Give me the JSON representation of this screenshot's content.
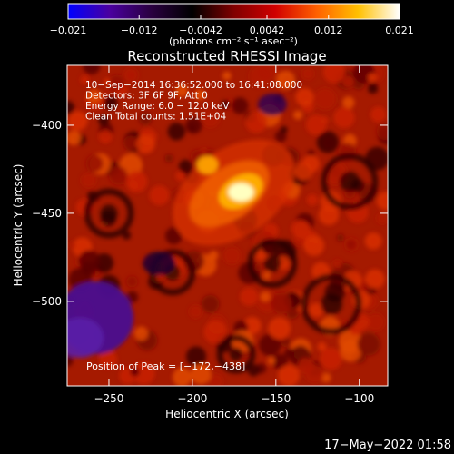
{
  "chart_data": {
    "type": "heatmap",
    "title": "Reconstructed RHESSI Image",
    "xlabel": "Heliocentric X (arcsec)",
    "ylabel": "Heliocentric Y (arcsec)",
    "xlim": [
      -275,
      -83
    ],
    "ylim": [
      -548,
      -366
    ],
    "x_ticks": [
      -250,
      -200,
      -150,
      -100
    ],
    "y_ticks": [
      -400,
      -450,
      -500
    ],
    "x_tick_labels": [
      "−250",
      "−200",
      "−150",
      "−100"
    ],
    "y_tick_labels": [
      "−400",
      "−450",
      "−500"
    ],
    "colorbar": {
      "range": [
        -0.021,
        0.021
      ],
      "ticks": [
        -0.021,
        -0.012,
        -0.0042,
        0.0042,
        0.012,
        0.021
      ],
      "tick_labels": [
        "−0.021",
        "−0.012",
        "−0.0042",
        "0.0042",
        "0.012",
        "0.021"
      ],
      "units_label": "(photons cm⁻² s⁻¹ asec⁻²)",
      "colors": [
        "#0000ff",
        "#4a00a0",
        "#2a0040",
        "#000000",
        "#800000",
        "#d00000",
        "#ff6000",
        "#ffc000",
        "#ffffff"
      ]
    },
    "annotations": [
      "10−Sep−2014 16:36:52.000 to 16:41:08.000",
      "Detectors: 3F 6F 9F, Att 0",
      "Energy Range: 6.0 − 12.0 keV",
      "Clean     Total counts: 1.51E+04"
    ],
    "peak": {
      "x": -172,
      "y": -438,
      "label": "Position of Peak = [−172,−438]"
    },
    "footer": "17−May−2022 01:58"
  }
}
